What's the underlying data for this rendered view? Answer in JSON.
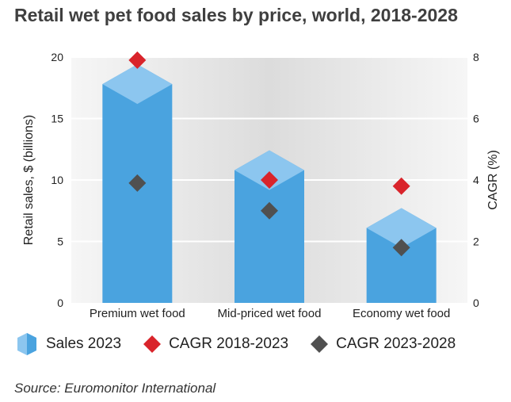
{
  "chart_data": {
    "type": "bar",
    "title": "Retail wet pet food sales by price, world, 2018-2028",
    "categories": [
      "Premium wet food",
      "Mid-priced wet food",
      "Economy wet food"
    ],
    "series": [
      {
        "name": "Sales 2023",
        "axis": "left",
        "type": "bar",
        "values": [
          17.8,
          10.8,
          6.1
        ]
      },
      {
        "name": "CAGR 2018-2023",
        "axis": "right",
        "type": "scatter",
        "values": [
          7.9,
          4.0,
          3.8
        ]
      },
      {
        "name": "CAGR 2023-2028",
        "axis": "right",
        "type": "scatter",
        "values": [
          3.9,
          3.0,
          1.8
        ]
      }
    ],
    "ylabel": "Retail sales, $ (billions)",
    "ylabel_right": "CAGR (%)",
    "ylim": [
      0,
      20
    ],
    "ylim_right": [
      0,
      8
    ],
    "yticks": [
      "0",
      "5",
      "10",
      "15",
      "20"
    ],
    "yticks_right": [
      "0",
      "2",
      "4",
      "6",
      "8"
    ],
    "grid": true,
    "legend_position": "bottom",
    "colors": {
      "bar": "#4aa3df",
      "bar_cap": "#8cc6ef",
      "cagr_2018_2023": "#d9242b",
      "cagr_2023_2028": "#505050",
      "gridline": "#ffffff"
    }
  },
  "legend": {
    "items": [
      {
        "label": "Sales 2023",
        "icon": "hexagon-bar-icon"
      },
      {
        "label": "CAGR 2018-2023",
        "icon": "red-diamond-icon"
      },
      {
        "label": "CAGR 2023-2028",
        "icon": "grey-diamond-icon"
      }
    ]
  },
  "source": "Source: Euromonitor International"
}
